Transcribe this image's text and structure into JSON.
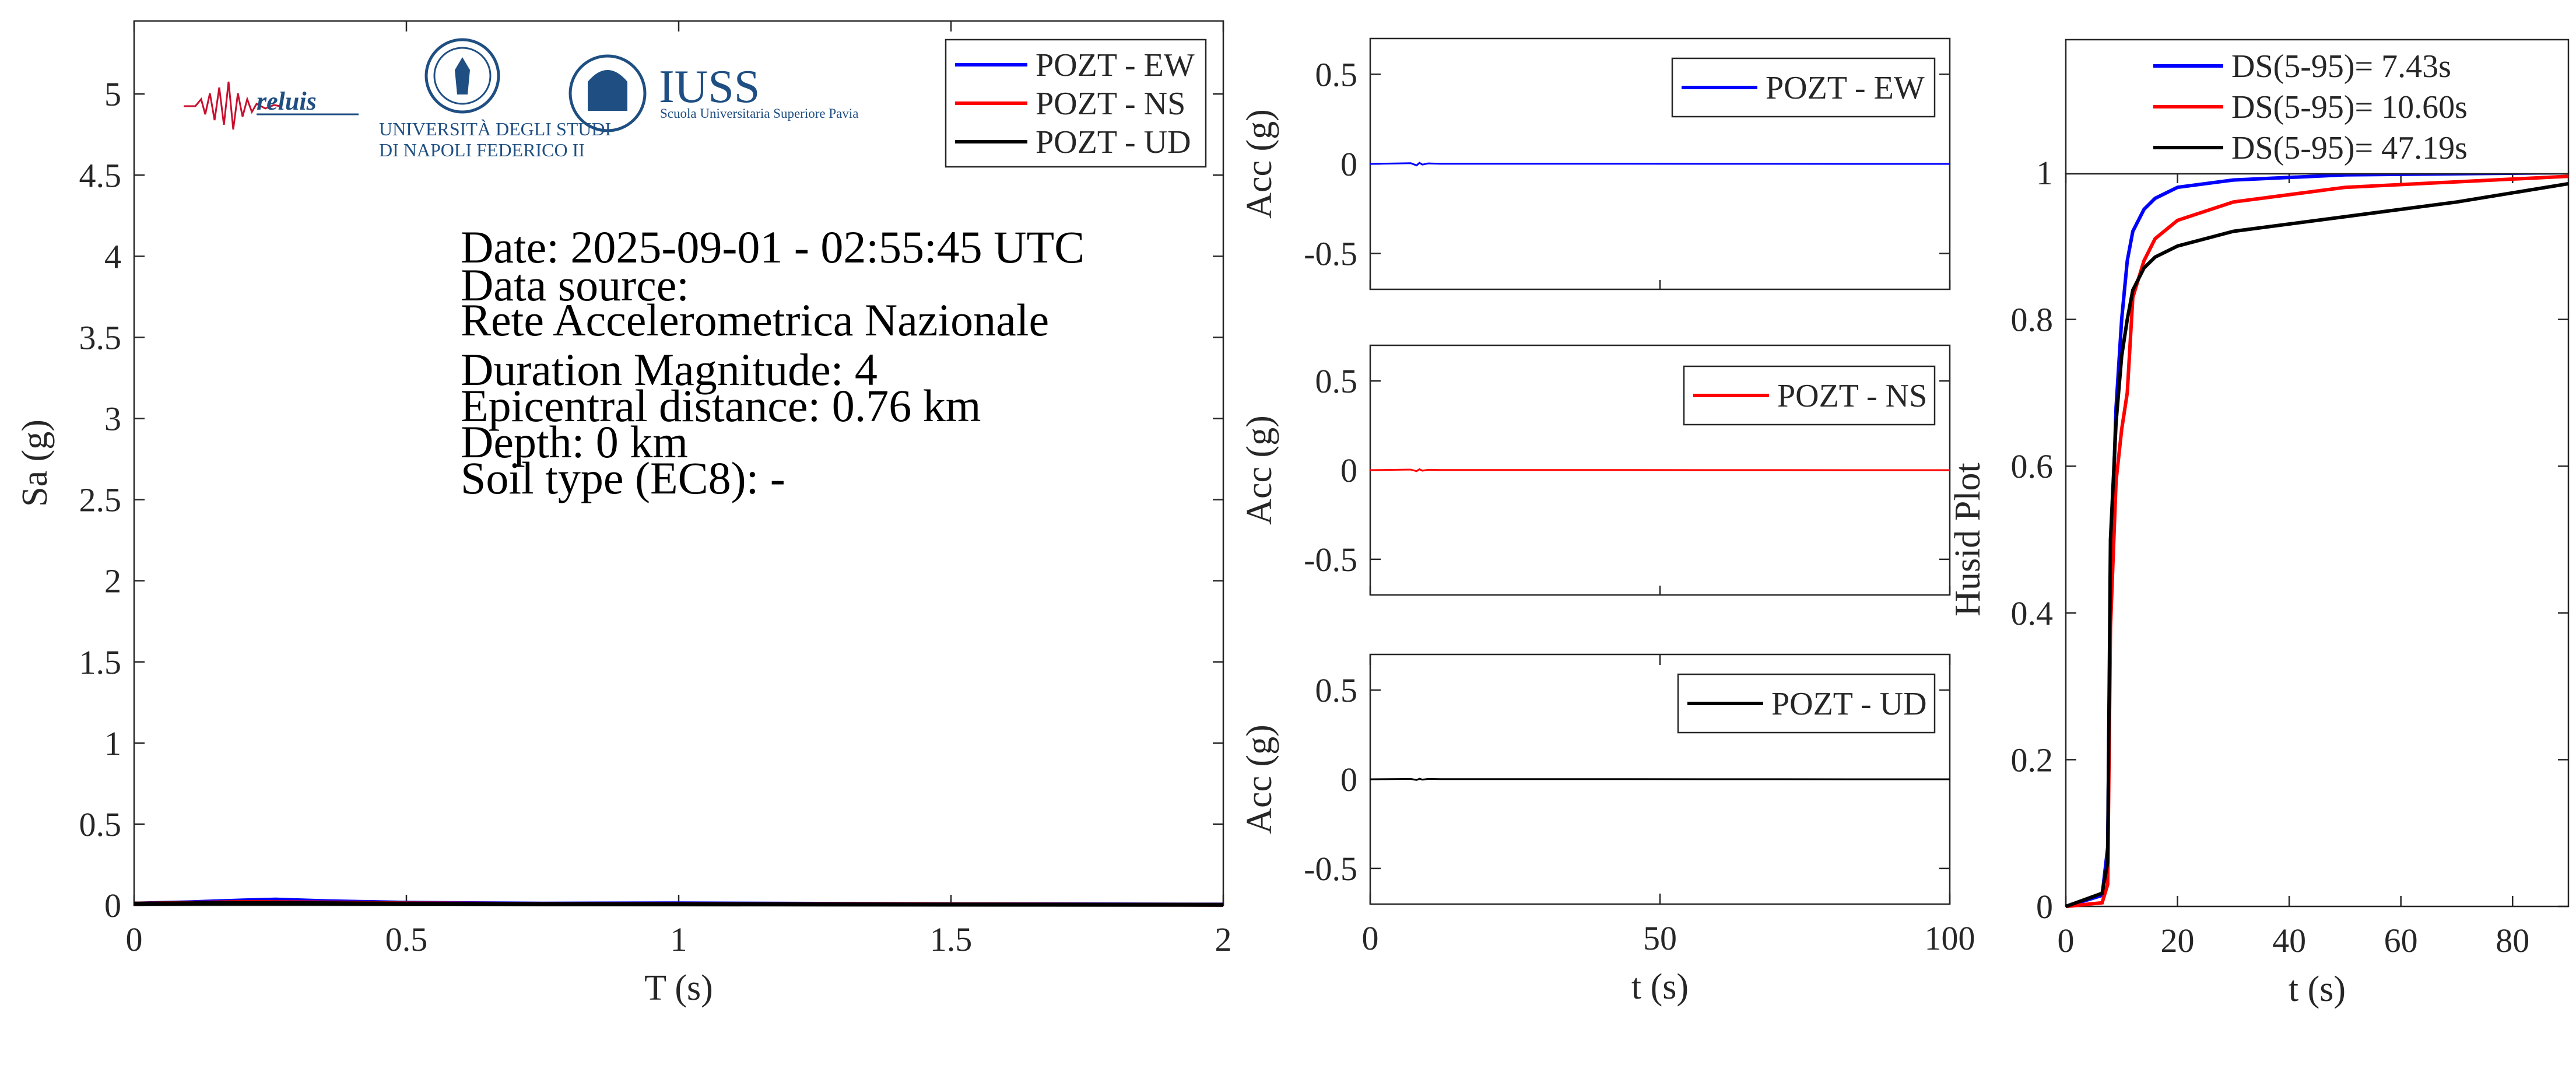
{
  "colors": {
    "ew": "#0000ff",
    "ns": "#ff0000",
    "ud": "#000000",
    "logo_red": "#c8102e",
    "logo_blue": "#1f4f82"
  },
  "logos": {
    "reluis": "reluis",
    "unina_line1": "UNIVERSITÀ DEGLI STUDI",
    "unina_line2": "DI NAPOLI FEDERICO II",
    "iuss_title": "IUSS",
    "iuss_subtitle": "Scuola Universitaria Superiore Pavia"
  },
  "info": {
    "date": "Date: 2025-09-01 - 02:55:45 UTC",
    "source_label": "Data source:",
    "source": "Rete Accelerometrica Nazionale",
    "magnitude": "Duration Magnitude: 4",
    "distance": "Epicentral distance: 0.76 km",
    "depth": "Depth: 0 km",
    "soil": "Soil type (EC8): -"
  },
  "chart_data": [
    {
      "type": "line",
      "id": "spectra",
      "xlabel": "T (s)",
      "ylabel": "Sa (g)",
      "xlim": [
        0,
        2
      ],
      "ylim": [
        0,
        5.45
      ],
      "xticks": [
        0,
        0.5,
        1,
        1.5,
        2
      ],
      "yticks": [
        0,
        0.5,
        1,
        1.5,
        2,
        2.5,
        3,
        3.5,
        4,
        4.5,
        5
      ],
      "legend": "top-right",
      "series": [
        {
          "name": "POZT - EW",
          "color": "#0000ff",
          "x": [
            0,
            0.1,
            0.2,
            0.26,
            0.35,
            0.5,
            0.75,
            1.0,
            1.5,
            2.0
          ],
          "y": [
            0.01,
            0.018,
            0.03,
            0.035,
            0.025,
            0.015,
            0.01,
            0.012,
            0.006,
            0.004
          ]
        },
        {
          "name": "POZT - NS",
          "color": "#ff0000",
          "x": [
            0,
            0.1,
            0.2,
            0.3,
            0.5,
            0.75,
            1.0,
            1.5,
            2.0
          ],
          "y": [
            0.01,
            0.014,
            0.02,
            0.018,
            0.012,
            0.008,
            0.008,
            0.005,
            0.003
          ]
        },
        {
          "name": "POZT - UD",
          "color": "#000000",
          "x": [
            0,
            0.1,
            0.2,
            0.3,
            0.5,
            0.75,
            1.0,
            1.5,
            2.0
          ],
          "y": [
            0.01,
            0.012,
            0.015,
            0.013,
            0.01,
            0.007,
            0.006,
            0.004,
            0.003
          ]
        }
      ]
    },
    {
      "type": "line",
      "id": "acc-ew",
      "xlabel": "",
      "ylabel": "Acc (g)",
      "xlim": [
        0,
        100
      ],
      "ylim": [
        -0.7,
        0.7
      ],
      "yticks": [
        -0.5,
        0,
        0.5
      ],
      "legend": "top-right",
      "series": [
        {
          "name": "POZT - EW",
          "color": "#0000ff",
          "x": [
            0,
            7,
            8,
            8.5,
            9,
            10,
            12,
            100
          ],
          "y": [
            0,
            0.004,
            -0.008,
            0.006,
            -0.004,
            0.003,
            0.001,
            0
          ]
        }
      ]
    },
    {
      "type": "line",
      "id": "acc-ns",
      "xlabel": "",
      "ylabel": "Acc (g)",
      "xlim": [
        0,
        100
      ],
      "ylim": [
        -0.7,
        0.7
      ],
      "yticks": [
        -0.5,
        0,
        0.5
      ],
      "legend": "top-right",
      "series": [
        {
          "name": "POZT - NS",
          "color": "#ff0000",
          "x": [
            0,
            7,
            8,
            8.5,
            9,
            10,
            12,
            100
          ],
          "y": [
            0,
            0.003,
            -0.006,
            0.005,
            -0.003,
            0.002,
            0.001,
            0
          ]
        }
      ]
    },
    {
      "type": "line",
      "id": "acc-ud",
      "xlabel": "t (s)",
      "ylabel": "Acc (g)",
      "xlim": [
        0,
        100
      ],
      "ylim": [
        -0.7,
        0.7
      ],
      "xticks": [
        0,
        50,
        100
      ],
      "yticks": [
        -0.5,
        0,
        0.5
      ],
      "legend": "top-right",
      "series": [
        {
          "name": "POZT - UD",
          "color": "#000000",
          "x": [
            0,
            7,
            8,
            8.5,
            9,
            10,
            12,
            100
          ],
          "y": [
            0,
            0.002,
            -0.004,
            0.003,
            -0.002,
            0.002,
            0.001,
            0
          ]
        }
      ]
    },
    {
      "type": "line",
      "id": "husid",
      "xlabel": "t (s)",
      "ylabel": "Husid Plot",
      "xlim": [
        0,
        90
      ],
      "ylim": [
        0,
        1
      ],
      "xticks": [
        0,
        20,
        40,
        60,
        80
      ],
      "yticks": [
        0,
        0.2,
        0.4,
        0.6,
        0.8,
        1
      ],
      "legend": "top",
      "series": [
        {
          "name": "DS(5-95)= 7.43s",
          "color": "#0000ff",
          "x": [
            0,
            6.5,
            7.5,
            8,
            9,
            10,
            11,
            12,
            14,
            16,
            20,
            30,
            50,
            90
          ],
          "y": [
            0,
            0.015,
            0.08,
            0.45,
            0.68,
            0.8,
            0.88,
            0.92,
            0.95,
            0.965,
            0.98,
            0.99,
            0.997,
            1
          ]
        },
        {
          "name": "DS(5-95)= 10.60s",
          "color": "#ff0000",
          "x": [
            0,
            6.5,
            7.5,
            8,
            9,
            10,
            11,
            12,
            14,
            16,
            20,
            30,
            50,
            90
          ],
          "y": [
            0,
            0.005,
            0.03,
            0.38,
            0.58,
            0.65,
            0.7,
            0.83,
            0.88,
            0.91,
            0.935,
            0.96,
            0.98,
            0.995
          ]
        },
        {
          "name": "DS(5-95)= 47.19s",
          "color": "#000000",
          "x": [
            0,
            6.5,
            7.5,
            8,
            9,
            10,
            11,
            12,
            14,
            16,
            20,
            30,
            50,
            70,
            90
          ],
          "y": [
            0,
            0.018,
            0.06,
            0.5,
            0.66,
            0.75,
            0.8,
            0.84,
            0.87,
            0.885,
            0.9,
            0.92,
            0.94,
            0.96,
            0.985
          ]
        }
      ]
    }
  ]
}
